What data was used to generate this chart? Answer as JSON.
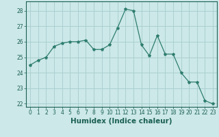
{
  "x": [
    0,
    1,
    2,
    3,
    4,
    5,
    6,
    7,
    8,
    9,
    10,
    11,
    12,
    13,
    14,
    15,
    16,
    17,
    18,
    19,
    20,
    21,
    22,
    23
  ],
  "y": [
    24.5,
    24.8,
    25.0,
    25.7,
    25.9,
    26.0,
    26.0,
    26.1,
    25.5,
    25.5,
    25.8,
    26.9,
    28.1,
    28.0,
    25.8,
    25.1,
    26.4,
    25.2,
    25.2,
    24.0,
    23.4,
    23.4,
    22.2,
    22.0
  ],
  "line_color": "#2e7d6e",
  "marker": "*",
  "marker_size": 3,
  "bg_color": "#cce8e8",
  "grid_color": "#aad0d0",
  "xlabel": "Humidex (Indice chaleur)",
  "ylim": [
    21.8,
    28.6
  ],
  "yticks": [
    22,
    23,
    24,
    25,
    26,
    27,
    28
  ],
  "xlim": [
    -0.5,
    23.5
  ],
  "xticks": [
    0,
    1,
    2,
    3,
    4,
    5,
    6,
    7,
    8,
    9,
    10,
    11,
    12,
    13,
    14,
    15,
    16,
    17,
    18,
    19,
    20,
    21,
    22,
    23
  ],
  "tick_color": "#1a5f52",
  "axis_color": "#1a5f52",
  "tick_fontsize": 5.5,
  "xlabel_fontsize": 7.5
}
